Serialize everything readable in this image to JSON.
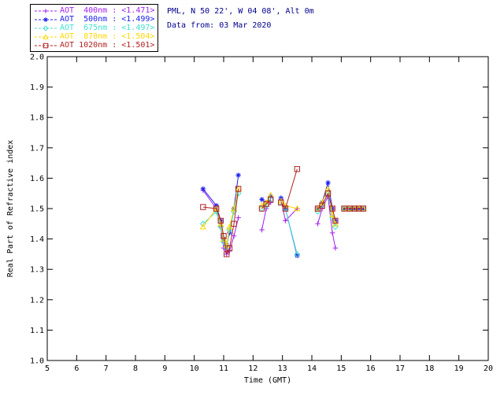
{
  "header": {
    "line1": "PML, N 50 22', W 04 08', Alt 0m",
    "line2": "Data from: 03 Mar 2020",
    "color": "#00008B"
  },
  "legend": {
    "items": [
      {
        "label": "AOT  400nm : <1.471>",
        "color": "#A020F0",
        "marker": "plus"
      },
      {
        "label": "AOT  500nm : <1.499>",
        "color": "#2020EE",
        "marker": "asterisk"
      },
      {
        "label": "AOT  675nm : <1.497>",
        "color": "#40E0D0",
        "marker": "diamond"
      },
      {
        "label": "AOT  870nm : <1.504>",
        "color": "#FFD700",
        "marker": "triangle"
      },
      {
        "label": "AOT 1020nm : <1.501>",
        "color": "#B22222",
        "marker": "square"
      }
    ]
  },
  "chart_data": {
    "type": "scatter",
    "title": "",
    "xlabel": "Time (GMT)",
    "ylabel": "Real Part of Refractive index",
    "xlim": [
      5,
      20
    ],
    "ylim": [
      1.0,
      2.0
    ],
    "x_tick_step": 1,
    "y_tick_step": 0.1,
    "grid": false,
    "legend_position": "top-left",
    "x": [
      10.3,
      10.75,
      10.9,
      11.0,
      11.1,
      11.2,
      11.35,
      11.5,
      12.3,
      12.45,
      12.6,
      12.95,
      13.1,
      13.5,
      14.2,
      14.35,
      14.55,
      14.7,
      14.8,
      15.1,
      15.3,
      15.45,
      15.6,
      15.75
    ],
    "segments": [
      [
        0,
        7
      ],
      [
        8,
        10
      ],
      [
        11,
        13
      ],
      [
        14,
        18
      ],
      [
        19,
        23
      ]
    ],
    "series": [
      {
        "id": "400nm",
        "name": "AOT 400nm",
        "mean": 1.471,
        "color": "#A020F0",
        "marker": "plus",
        "values": [
          1.56,
          1.5,
          1.44,
          1.37,
          1.35,
          1.36,
          1.41,
          1.47,
          1.43,
          1.5,
          1.52,
          1.53,
          1.46,
          1.5,
          1.45,
          1.5,
          1.54,
          1.42,
          1.37,
          1.5,
          1.5,
          1.5,
          1.5,
          1.5
        ]
      },
      {
        "id": "500nm",
        "name": "AOT 500nm",
        "mean": 1.499,
        "color": "#2020EE",
        "marker": "asterisk",
        "values": [
          1.565,
          1.51,
          1.46,
          1.4,
          1.38,
          1.42,
          1.5,
          1.61,
          1.53,
          1.52,
          1.54,
          1.535,
          1.5,
          1.345,
          1.5,
          1.52,
          1.585,
          1.5,
          1.46,
          1.5,
          1.5,
          1.5,
          1.5,
          1.5
        ]
      },
      {
        "id": "675nm",
        "name": "AOT 675nm",
        "mean": 1.497,
        "color": "#40E0D0",
        "marker": "diamond",
        "values": [
          1.45,
          1.49,
          1.44,
          1.39,
          1.37,
          1.43,
          1.49,
          1.55,
          1.5,
          1.51,
          1.53,
          1.52,
          1.5,
          1.35,
          1.49,
          1.51,
          1.55,
          1.47,
          1.44,
          1.5,
          1.5,
          1.5,
          1.5,
          1.5
        ]
      },
      {
        "id": "870nm",
        "name": "AOT 870nm",
        "mean": 1.504,
        "color": "#FFD700",
        "marker": "triangle",
        "values": [
          1.44,
          1.5,
          1.45,
          1.4,
          1.38,
          1.44,
          1.5,
          1.565,
          1.51,
          1.52,
          1.545,
          1.525,
          1.51,
          1.5,
          1.5,
          1.52,
          1.565,
          1.48,
          1.45,
          1.5,
          1.5,
          1.5,
          1.5,
          1.5
        ]
      },
      {
        "id": "1020nm",
        "name": "AOT 1020nm",
        "mean": 1.501,
        "color": "#B22222",
        "marker": "square",
        "values": [
          1.505,
          1.5,
          1.46,
          1.41,
          1.35,
          1.37,
          1.45,
          1.565,
          1.5,
          1.515,
          1.53,
          1.52,
          1.5,
          1.63,
          1.5,
          1.51,
          1.55,
          1.5,
          1.46,
          1.5,
          1.5,
          1.5,
          1.5,
          1.5
        ]
      }
    ]
  }
}
